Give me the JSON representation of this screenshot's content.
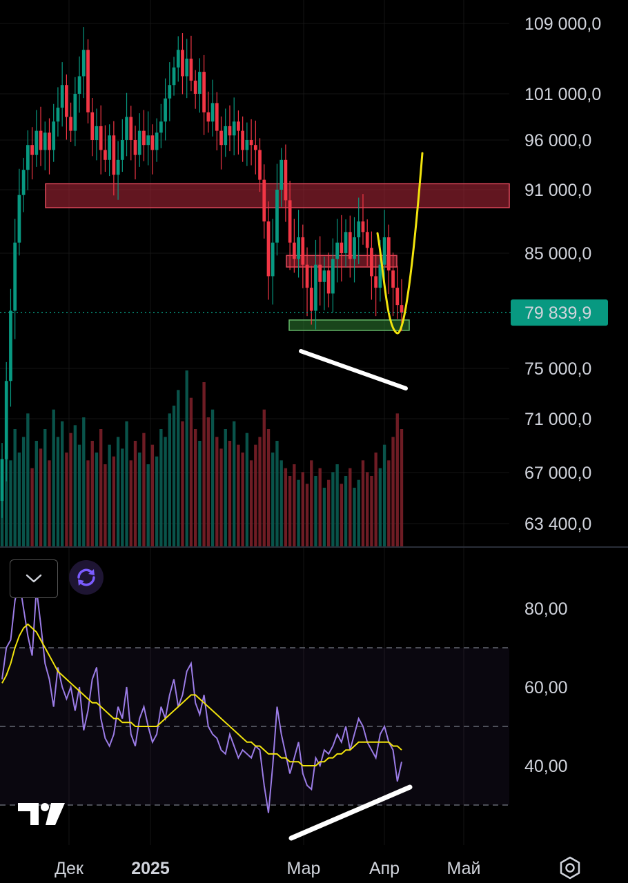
{
  "chart_data": [
    {
      "type": "candlestick",
      "price_axis": {
        "ticks": [
          "109 000,0",
          "101 000,0",
          "96 000,0",
          "91 000,0",
          "85 000,0",
          "75 000,0",
          "71 000,0",
          "67 000,0",
          "63 400,0"
        ],
        "tick_values": [
          109000,
          101000,
          96000,
          91000,
          85000,
          75000,
          71000,
          67000,
          63400
        ]
      },
      "time_axis": {
        "labels": [
          "Дек",
          "2025",
          "Мар",
          "Апр",
          "Май"
        ],
        "bold": [
          false,
          true,
          false,
          false,
          false
        ]
      },
      "last_price": {
        "label": "79 839,9",
        "value": 79839.9,
        "color": "#089981"
      },
      "candles_close": [
        68000,
        74000,
        80000,
        86000,
        90500,
        93000,
        95500,
        94500,
        97000,
        95000,
        96800,
        95000,
        98000,
        99500,
        102000,
        98500,
        97000,
        101000,
        103000,
        106000,
        99000,
        96000,
        97500,
        95000,
        94000,
        96500,
        92500,
        94000,
        96000,
        98500,
        96000,
        94500,
        97000,
        95500,
        96500,
        95000,
        96800,
        98000,
        100500,
        102000,
        104000,
        106000,
        103000,
        105000,
        102500,
        101000,
        103500,
        99000,
        98000,
        100000,
        97000,
        95500,
        97500,
        96500,
        98000,
        97000,
        95000,
        96000,
        95500,
        95000,
        92000,
        88000,
        83000,
        86000,
        91000,
        94000,
        90000,
        86000,
        84500,
        86500,
        84000,
        82000,
        80000,
        84000,
        82500,
        83500,
        81500,
        84500,
        86000,
        85000,
        87000,
        84500,
        86500,
        88000,
        87000,
        85500,
        83000,
        82000,
        84000,
        86500,
        83500,
        82000,
        80500,
        79839.9
      ],
      "volume": [
        18,
        26,
        22,
        30,
        24,
        28,
        34,
        20,
        27,
        25,
        30,
        22,
        35,
        28,
        32,
        24,
        29,
        31,
        26,
        33,
        22,
        27,
        24,
        30,
        21,
        26,
        23,
        28,
        25,
        32,
        22,
        27,
        24,
        29,
        21,
        26,
        23,
        30,
        28,
        34,
        36,
        40,
        32,
        45,
        38,
        30,
        27,
        42,
        33,
        35,
        28,
        25,
        30,
        27,
        32,
        26,
        24,
        29,
        22,
        26,
        28,
        35,
        30,
        24,
        27,
        22,
        20,
        18,
        21,
        17,
        19,
        16,
        22,
        18,
        20,
        15,
        17,
        19,
        21,
        16,
        18,
        20,
        15,
        17,
        22,
        19,
        18,
        24,
        20,
        26,
        22,
        28,
        34,
        30
      ],
      "zones": [
        {
          "from": 89300,
          "to": 91600,
          "color": "#b2283a"
        },
        {
          "from": 83800,
          "to": 84800,
          "color": "#b2283a"
        },
        {
          "from": 78300,
          "to": 79200,
          "color": "#2e7d32"
        }
      ]
    },
    {
      "type": "line",
      "name": "RSI",
      "ylim": [
        25,
        93
      ],
      "axis_ticks": [
        "80,00",
        "60,00",
        "40,00"
      ],
      "tick_values": [
        80,
        60,
        40
      ],
      "bands": [
        70,
        50,
        30
      ],
      "rsi": [
        62,
        70,
        72,
        82,
        87,
        80,
        73,
        68,
        85,
        76,
        66,
        62,
        55,
        65,
        60,
        57,
        60,
        54,
        60,
        49,
        54,
        62,
        65,
        52,
        47,
        45,
        48,
        55,
        52,
        60,
        48,
        45,
        52,
        55,
        50,
        46,
        48,
        55,
        52,
        58,
        62,
        55,
        58,
        64,
        66,
        56,
        53,
        58,
        50,
        48,
        47,
        44,
        43,
        48,
        45,
        42,
        44,
        43,
        42,
        45,
        44,
        35,
        28,
        40,
        55,
        48,
        43,
        38,
        42,
        46,
        38,
        35,
        34,
        42,
        40,
        44,
        43,
        45,
        48,
        46,
        50,
        44,
        48,
        52,
        50,
        46,
        44,
        42,
        48,
        50,
        46,
        44,
        36,
        41
      ],
      "rsi_ma": [
        61,
        63,
        66,
        70,
        73,
        75,
        76,
        75,
        74,
        72,
        70,
        68,
        66,
        64,
        63,
        62,
        61,
        60,
        59,
        58,
        57,
        56,
        56,
        55,
        54,
        53,
        52,
        52,
        51,
        51,
        51,
        50,
        50,
        50,
        50,
        50,
        50,
        51,
        52,
        53,
        54,
        55,
        56,
        57,
        58,
        58,
        57,
        56,
        55,
        54,
        53,
        52,
        51,
        50,
        49,
        48,
        47,
        46,
        46,
        45,
        45,
        44,
        43,
        43,
        43,
        42,
        42,
        41,
        41,
        41,
        40,
        40,
        40,
        40,
        41,
        41,
        42,
        42,
        43,
        43,
        44,
        44,
        45,
        46,
        46,
        46,
        46,
        46,
        46,
        46,
        46,
        45,
        45,
        44
      ],
      "line_color": "#9b7ce6",
      "ma_color": "#f2e40d"
    }
  ],
  "controls": {
    "collapse_icon": "chevron-down-icon",
    "sync_icon": "sync-icon",
    "settings_icon": "settings-icon"
  },
  "logo": "tradingview-logo"
}
